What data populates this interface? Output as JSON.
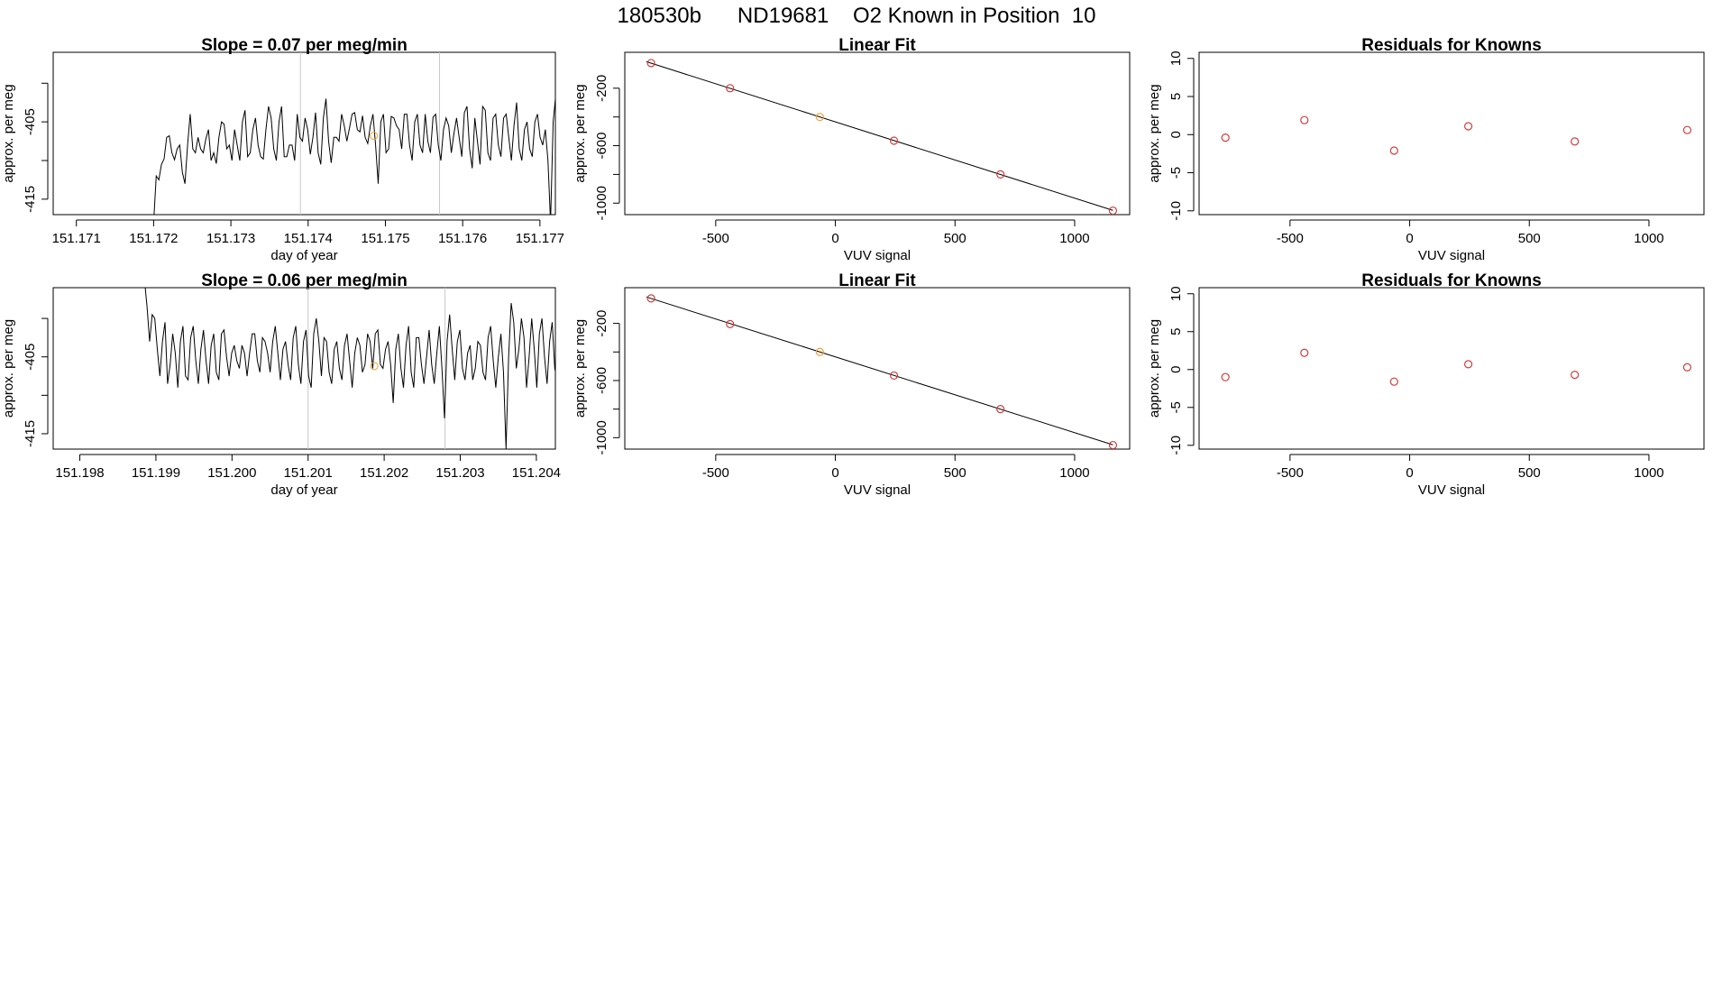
{
  "figure": {
    "title": "180530b      ND19681    O2 Known in Position  10"
  },
  "colors": {
    "line": "#000000",
    "point": "#d23c3c",
    "highlight": "#f0a23a",
    "marker_line": "#c8c8c8",
    "frame": "#000000"
  },
  "chart_data": [
    {
      "type": "line",
      "title": "Slope =  0.07  per meg/min",
      "xlabel": "day of year",
      "ylabel": "approx. per meg",
      "xlim": [
        151.1707,
        151.1772
      ],
      "ylim": [
        -417,
        -396
      ],
      "xticks": [
        151.171,
        151.172,
        151.173,
        151.174,
        151.175,
        151.176,
        151.177
      ],
      "xtick_labels": [
        "151.171",
        "151.172",
        "151.173",
        "151.174",
        "151.175",
        "151.176",
        "151.177"
      ],
      "yticks": [
        -415,
        -410,
        -405,
        -400
      ],
      "ytick_labels": [
        "-415",
        "",
        "-405",
        ""
      ],
      "vlines": [
        151.1739,
        151.1757
      ],
      "highlight_point": {
        "x": 151.17485,
        "y": -406.8
      },
      "series": [
        {
          "x0": 151.172,
          "dx": 3.38e-05,
          "values": [
            -418,
            -412,
            -412.5,
            -410.5,
            -409.8,
            -407,
            -406.8,
            -409,
            -409.9,
            -408.5,
            -408,
            -411.5,
            -413,
            -408,
            -404,
            -408.5,
            -409,
            -407,
            -408.5,
            -409,
            -407.2,
            -406,
            -410,
            -409,
            -410.4,
            -407,
            -405,
            -405.3,
            -408.5,
            -408,
            -410,
            -406,
            -408,
            -410,
            -405,
            -403.5,
            -409.5,
            -409,
            -406,
            -404.5,
            -408,
            -409.5,
            -409.8,
            -406,
            -403,
            -404.5,
            -408.5,
            -410,
            -405,
            -403,
            -409.5,
            -409.5,
            -408,
            -408,
            -410,
            -404,
            -407,
            -407.5,
            -404.5,
            -406,
            -409.2,
            -407,
            -403.8,
            -409,
            -410.5,
            -404.5,
            -402,
            -407.5,
            -410.3,
            -407,
            -407,
            -407.5,
            -404,
            -405.5,
            -407.5,
            -405.8,
            -404,
            -403.8,
            -406,
            -406.3,
            -404.2,
            -407,
            -407.8,
            -405.5,
            -404,
            -408,
            -413,
            -405,
            -404,
            -409,
            -408.5,
            -404.3,
            -404.5,
            -405.5,
            -406,
            -408.5,
            -404,
            -404,
            -408,
            -410,
            -405,
            -404,
            -408,
            -409,
            -404,
            -407.5,
            -409,
            -404.4,
            -404,
            -408,
            -410,
            -406,
            -404.5,
            -405.5,
            -409,
            -406.5,
            -404.5,
            -407,
            -409.5,
            -403.8,
            -403,
            -408.5,
            -411,
            -404.5,
            -407.5,
            -410.5,
            -403,
            -403.5,
            -409,
            -410,
            -404.5,
            -404,
            -408,
            -409.5,
            -404.5,
            -404,
            -407,
            -410,
            -405.5,
            -402.5,
            -408.5,
            -410,
            -406,
            -405,
            -408.5,
            -409.5,
            -405,
            -404,
            -407,
            -408,
            -406,
            -410,
            -418,
            -405,
            -401.5,
            -406,
            -409,
            -407,
            -409.5,
            -403,
            -398.5,
            -399.5,
            -408.5,
            -409.5,
            -402,
            -402.5,
            -406,
            -407,
            -405,
            -405,
            -409,
            -405.5,
            -400.5,
            -398.5,
            -401,
            -406,
            -407.5,
            -401.5,
            -402,
            -403,
            -402,
            -395
          ]
        }
      ]
    },
    {
      "type": "scatter",
      "title": "Linear Fit",
      "xlabel": "VUV signal",
      "ylabel": "approx. per meg",
      "xlim": [
        -880,
        1230
      ],
      "ylim": [
        -1080,
        50
      ],
      "xticks": [
        -500,
        0,
        500,
        1000
      ],
      "xtick_labels": [
        "-500",
        "0",
        "500",
        "1000"
      ],
      "yticks": [
        -1000,
        -800,
        -600,
        -400,
        -200
      ],
      "ytick_labels": [
        "-1000",
        "",
        "-600",
        "",
        "-200"
      ],
      "fit_line": {
        "x": [
          -790,
          1160
        ],
        "y": [
          -15,
          -1050
        ]
      },
      "points": [
        {
          "x": -770,
          "y": -25
        },
        {
          "x": -440,
          "y": -200
        },
        {
          "x": -65,
          "y": -400,
          "highlight": true
        },
        {
          "x": 245,
          "y": -565
        },
        {
          "x": 690,
          "y": -800
        },
        {
          "x": 1160,
          "y": -1052
        }
      ]
    },
    {
      "type": "scatter",
      "title": "Residuals for Knowns",
      "xlabel": "VUV signal",
      "ylabel": "approx. per meg",
      "xlim": [
        -880,
        1230
      ],
      "ylim": [
        -10.5,
        10.8
      ],
      "xticks": [
        -500,
        0,
        500,
        1000
      ],
      "xtick_labels": [
        "-500",
        "0",
        "500",
        "1000"
      ],
      "yticks": [
        -10,
        -5,
        0,
        5,
        10
      ],
      "ytick_labels": [
        "-10",
        "-5",
        "0",
        "5",
        "10"
      ],
      "points": [
        {
          "x": -770,
          "y": -0.4
        },
        {
          "x": -440,
          "y": 1.9
        },
        {
          "x": -65,
          "y": -2.1
        },
        {
          "x": 245,
          "y": 1.1
        },
        {
          "x": 690,
          "y": -0.9
        },
        {
          "x": 1160,
          "y": 0.6
        }
      ]
    },
    {
      "type": "line",
      "title": "Slope =  0.06  per meg/min",
      "xlabel": "day of year",
      "ylabel": "approx. per meg",
      "xlim": [
        151.19765,
        151.20425
      ],
      "ylim": [
        -417,
        -396
      ],
      "xticks": [
        151.198,
        151.199,
        151.2,
        151.201,
        151.202,
        151.203,
        151.204
      ],
      "xtick_labels": [
        "151.198",
        "151.199",
        "151.200",
        "151.201",
        "151.202",
        "151.203",
        "151.204"
      ],
      "yticks": [
        -415,
        -410,
        -405,
        -400
      ],
      "ytick_labels": [
        "-415",
        "",
        "-405",
        ""
      ],
      "vlines": [
        151.201,
        151.2028
      ],
      "highlight_point": {
        "x": 151.20187,
        "y": -406.2
      },
      "series": [
        {
          "x0": 151.19885,
          "dx": 3.37e-05,
          "values": [
            -395,
            -398.5,
            -403,
            -399.5,
            -400,
            -404,
            -407.5,
            -403,
            -400.5,
            -408.5,
            -406,
            -402,
            -404.5,
            -409,
            -403,
            -401,
            -407.5,
            -408,
            -402.5,
            -401,
            -405.5,
            -408.5,
            -404,
            -401.5,
            -405.5,
            -408.5,
            -403.5,
            -402,
            -407,
            -408,
            -402,
            -401.5,
            -405,
            -407.5,
            -404.5,
            -403.5,
            -405.5,
            -406.5,
            -403.5,
            -404.5,
            -407.5,
            -404.5,
            -402,
            -402,
            -405.5,
            -407,
            -402.5,
            -403,
            -404.5,
            -407,
            -403,
            -401,
            -404.5,
            -408,
            -404,
            -403,
            -406,
            -408,
            -402.5,
            -401,
            -406,
            -408.5,
            -403,
            -401.5,
            -407.5,
            -409,
            -402,
            -400,
            -403,
            -407.5,
            -402.5,
            -403,
            -407,
            -408.5,
            -404,
            -403,
            -406.5,
            -408,
            -403.5,
            -402,
            -405.5,
            -409,
            -404.5,
            -402.5,
            -403.5,
            -407,
            -406,
            -402,
            -403,
            -406.5,
            -402,
            -401.5,
            -406,
            -406.5,
            -404,
            -403,
            -406,
            -411,
            -404,
            -402,
            -406.5,
            -409,
            -403.5,
            -401,
            -407,
            -409,
            -402.5,
            -402.5,
            -406,
            -408.5,
            -405,
            -401.5,
            -406,
            -408.5,
            -404.5,
            -401,
            -406.5,
            -413,
            -403,
            -399.5,
            -404,
            -408,
            -403,
            -401.5,
            -406.5,
            -408,
            -404.5,
            -403.5,
            -408,
            -406.5,
            -403,
            -403.5,
            -407,
            -408,
            -402.5,
            -401,
            -405.5,
            -409,
            -405,
            -402,
            -407,
            -417,
            -405,
            -398,
            -400.5,
            -406.5,
            -404,
            -400,
            -402.5,
            -409,
            -405,
            -400,
            -404,
            -409,
            -402,
            -400,
            -405,
            -408.5,
            -403,
            -400.5,
            -406.5,
            -408,
            -401,
            -401,
            -406,
            -408,
            -403.5,
            -403.5,
            -407,
            -418
          ]
        }
      ]
    },
    {
      "type": "scatter",
      "title": "Linear Fit",
      "xlabel": "VUV signal",
      "ylabel": "approx. per meg",
      "xlim": [
        -880,
        1230
      ],
      "ylim": [
        -1080,
        50
      ],
      "xticks": [
        -500,
        0,
        500,
        1000
      ],
      "xtick_labels": [
        "-500",
        "0",
        "500",
        "1000"
      ],
      "yticks": [
        -1000,
        -800,
        -600,
        -400,
        -200
      ],
      "ytick_labels": [
        "-1000",
        "",
        "-600",
        "",
        "-200"
      ],
      "fit_line": {
        "x": [
          -790,
          1160
        ],
        "y": [
          -15,
          -1050
        ]
      },
      "points": [
        {
          "x": -770,
          "y": -25
        },
        {
          "x": -440,
          "y": -205
        },
        {
          "x": -65,
          "y": -400,
          "highlight": true
        },
        {
          "x": 245,
          "y": -565
        },
        {
          "x": 690,
          "y": -800
        },
        {
          "x": 1160,
          "y": -1052
        }
      ]
    },
    {
      "type": "scatter",
      "title": "Residuals for Knowns",
      "xlabel": "VUV signal",
      "ylabel": "approx. per meg",
      "xlim": [
        -880,
        1230
      ],
      "ylim": [
        -10.5,
        10.8
      ],
      "xticks": [
        -500,
        0,
        500,
        1000
      ],
      "xtick_labels": [
        "-500",
        "0",
        "500",
        "1000"
      ],
      "yticks": [
        -10,
        -5,
        0,
        5,
        10
      ],
      "ytick_labels": [
        "-10",
        "-5",
        "0",
        "5",
        "10"
      ],
      "points": [
        {
          "x": -770,
          "y": -1.0
        },
        {
          "x": -440,
          "y": 2.2
        },
        {
          "x": -65,
          "y": -1.6
        },
        {
          "x": 245,
          "y": 0.7
        },
        {
          "x": 690,
          "y": -0.7
        },
        {
          "x": 1160,
          "y": 0.3
        }
      ]
    }
  ]
}
